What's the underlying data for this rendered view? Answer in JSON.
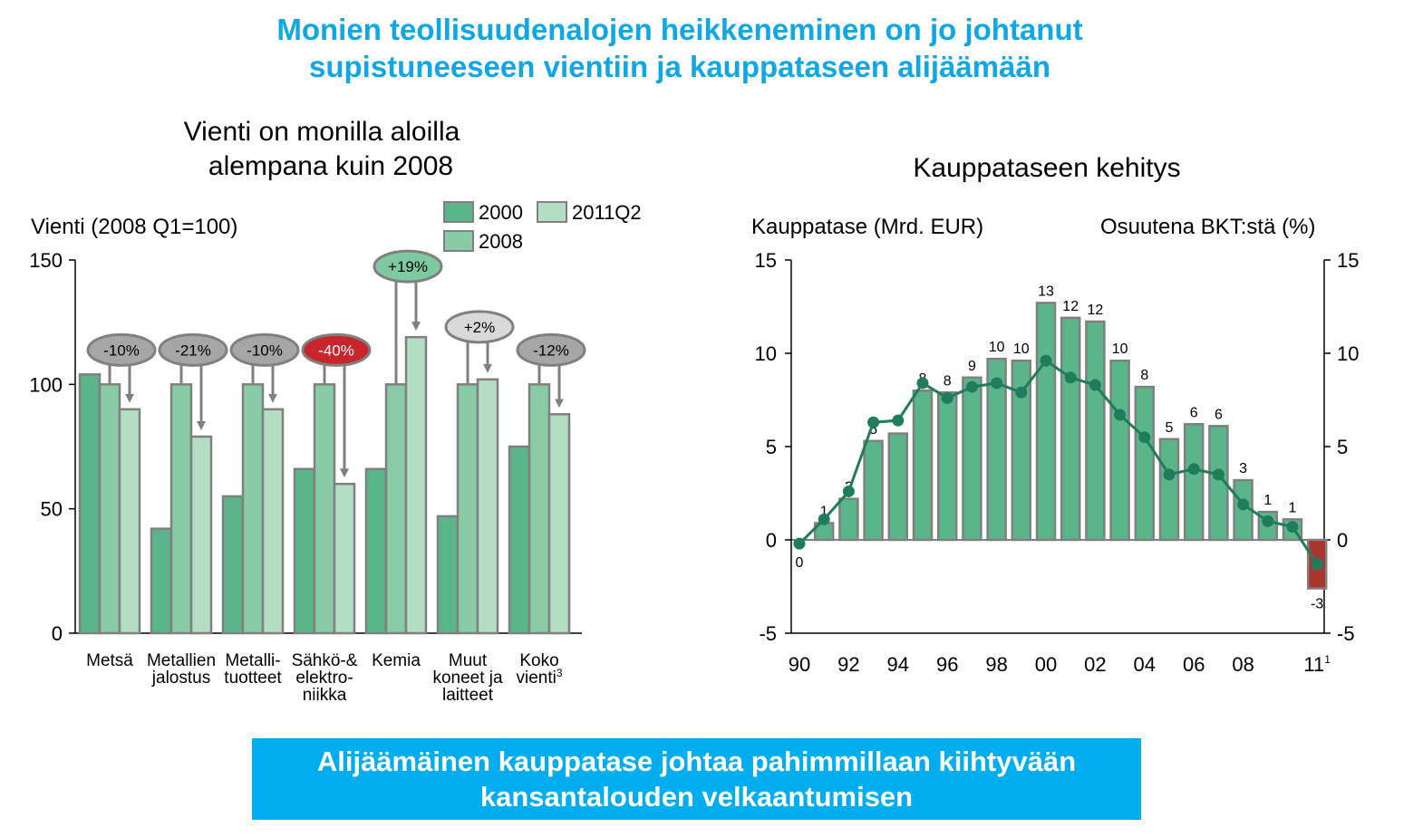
{
  "headline": {
    "line1": "Monien teollisuudenalojen heikkeneminen on jo johtanut",
    "line2": "supistuneeseen vientiin ja kauppataseen alijäämään"
  },
  "banner": {
    "line1": "Alijäämäinen kauppatase johtaa pahimmillaan kiihtyvään",
    "line2": "kansantalouden velkaantumisen"
  },
  "colors": {
    "accent": "#10a8e4",
    "banner": "#00aeef",
    "bar_2000": "#5bb58a",
    "bar_2008": "#88cba6",
    "bar_2011Q2": "#b3dec4",
    "bar_outline": "#808080",
    "line": "#1f7d5c",
    "deficit": "#a93530",
    "badge_grey": "#a6a6a6",
    "badge_red": "#c8262d",
    "badge_green": "#7fc9a0",
    "badge_light": "#d9d9d9"
  },
  "chart_data": [
    {
      "type": "bar",
      "title_line1": "Vienti on monilla aloilla",
      "title_line2": "alempana kuin 2008",
      "ylabel": "Vienti (2008 Q1=100)",
      "ylim": [
        0,
        150
      ],
      "yticks": [
        "0",
        "50",
        "100",
        "150"
      ],
      "legend_placement": "top-right",
      "categories": [
        {
          "label_lines": [
            "Metsä"
          ]
        },
        {
          "label_lines": [
            "Metallien",
            "jalostus"
          ]
        },
        {
          "label_lines": [
            "Metalli-",
            "tuotteet"
          ]
        },
        {
          "label_lines": [
            "Sähkö-&",
            "elektro-",
            "niikka"
          ]
        },
        {
          "label_lines": [
            "Kemia"
          ]
        },
        {
          "label_lines": [
            "Muut",
            "koneet ja",
            "laitteet"
          ]
        },
        {
          "label_lines": [
            "Koko",
            "vienti"
          ],
          "footnote": "3"
        }
      ],
      "series": [
        {
          "name": "2000",
          "values": [
            104,
            42,
            55,
            66,
            66,
            47,
            75
          ]
        },
        {
          "name": "2008",
          "values": [
            100,
            100,
            100,
            100,
            100,
            100,
            100
          ]
        },
        {
          "name": "2011Q2",
          "values": [
            90,
            79,
            90,
            60,
            119,
            102,
            88
          ]
        }
      ],
      "change_labels": [
        "-10%",
        "-21%",
        "-10%",
        "-40%",
        "+19%",
        "+2%",
        "-12%"
      ],
      "change_styles": [
        "grey",
        "grey",
        "grey",
        "red",
        "green",
        "light",
        "grey"
      ]
    },
    {
      "type": "bar+line",
      "title": "Kauppataseen kehitys",
      "ylabel_left": "Kauppatase (Mrd. EUR)",
      "ylabel_right": "Osuutena BKT:stä (%)",
      "ylim": [
        -5,
        15
      ],
      "yticks_left": [
        "-5",
        "0",
        "5",
        "10",
        "15"
      ],
      "yticks_right": [
        "-5",
        "0",
        "5",
        "10",
        "15"
      ],
      "x": [
        1990,
        1991,
        1992,
        1993,
        1994,
        1995,
        1996,
        1997,
        1998,
        1999,
        2000,
        2001,
        2002,
        2003,
        2004,
        2005,
        2006,
        2007,
        2008,
        2009,
        2010,
        2011
      ],
      "xtick_labels": [
        "90",
        "92",
        "94",
        "96",
        "98",
        "00",
        "02",
        "04",
        "06",
        "08",
        "11"
      ],
      "xtick_years": [
        1990,
        1992,
        1994,
        1996,
        1998,
        2000,
        2002,
        2004,
        2006,
        2008,
        2011
      ],
      "xtick_last_footnote": "1",
      "series": [
        {
          "name": "Kauppatase (Mrd. EUR)",
          "kind": "bar",
          "values": [
            0,
            0.9,
            2.2,
            5.3,
            5.7,
            8.0,
            7.9,
            8.7,
            9.7,
            9.6,
            12.7,
            11.9,
            11.7,
            9.6,
            8.2,
            5.4,
            6.2,
            6.1,
            3.2,
            1.5,
            1.1,
            -2.6
          ],
          "labels": [
            "0",
            "1",
            "2",
            "5",
            "6",
            "8",
            "8",
            "9",
            "10",
            "10",
            "13",
            "12",
            "12",
            "10",
            "8",
            "5",
            "6",
            "6",
            "3",
            "1",
            "1",
            "-3"
          ]
        },
        {
          "name": "Osuutena BKT:stä (%)",
          "kind": "line",
          "values": [
            -0.2,
            1.1,
            2.6,
            6.3,
            6.4,
            8.4,
            7.6,
            8.2,
            8.4,
            7.9,
            9.6,
            8.7,
            8.3,
            6.7,
            5.5,
            3.5,
            3.8,
            3.5,
            1.9,
            1.0,
            0.7,
            -1.3
          ]
        }
      ]
    }
  ]
}
